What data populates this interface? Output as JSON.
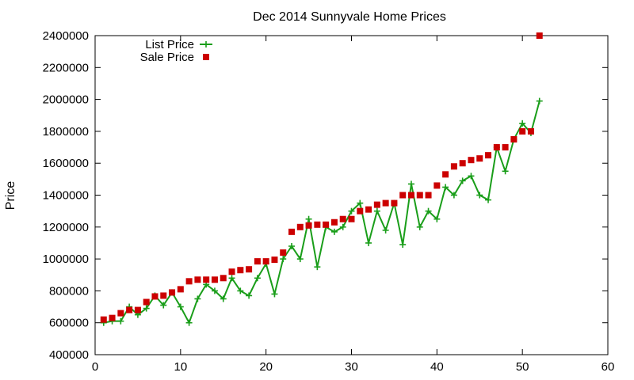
{
  "chart_data": {
    "type": "scatter",
    "title": "Dec 2014 Sunnyvale Home Prices",
    "xlabel": "",
    "ylabel": "Price",
    "xlim": [
      0,
      60
    ],
    "ylim": [
      400000,
      2400000
    ],
    "x_ticks": [
      "0",
      "10",
      "20",
      "30",
      "40",
      "50",
      "60"
    ],
    "y_ticks": [
      "400000",
      "600000",
      "800000",
      "1000000",
      "1200000",
      "1400000",
      "1600000",
      "1800000",
      "2000000",
      "2200000",
      "2400000"
    ],
    "grid": false,
    "legend_position": "top-left",
    "series": [
      {
        "name": "List Price",
        "style": "line-points",
        "color": "#1a9e1a",
        "x": [
          1,
          2,
          3,
          4,
          5,
          6,
          7,
          8,
          9,
          10,
          11,
          12,
          13,
          14,
          15,
          16,
          17,
          18,
          19,
          20,
          21,
          22,
          23,
          24,
          25,
          26,
          27,
          28,
          29,
          30,
          31,
          32,
          33,
          34,
          35,
          36,
          37,
          38,
          39,
          40,
          41,
          42,
          43,
          44,
          45,
          46,
          47,
          48,
          49,
          50,
          51,
          52
        ],
        "values": [
          600000,
          610000,
          610000,
          700000,
          650000,
          690000,
          770000,
          710000,
          790000,
          700000,
          600000,
          750000,
          840000,
          800000,
          750000,
          880000,
          800000,
          770000,
          880000,
          970000,
          780000,
          1000000,
          1080000,
          1000000,
          1250000,
          950000,
          1200000,
          1170000,
          1200000,
          1300000,
          1350000,
          1100000,
          1300000,
          1180000,
          1350000,
          1090000,
          1470000,
          1200000,
          1300000,
          1250000,
          1450000,
          1400000,
          1490000,
          1520000,
          1400000,
          1370000,
          1700000,
          1550000,
          1750000,
          1850000,
          1790000,
          1990000
        ]
      },
      {
        "name": "Sale Price",
        "style": "points",
        "color": "#cc0000",
        "x": [
          1,
          2,
          3,
          4,
          5,
          6,
          7,
          8,
          9,
          10,
          11,
          12,
          13,
          14,
          15,
          16,
          17,
          18,
          19,
          20,
          21,
          22,
          23,
          24,
          25,
          26,
          27,
          28,
          29,
          30,
          31,
          32,
          33,
          34,
          35,
          36,
          37,
          38,
          39,
          40,
          41,
          42,
          43,
          44,
          45,
          46,
          47,
          48,
          49,
          50,
          51,
          52
        ],
        "values": [
          620000,
          630000,
          660000,
          680000,
          680000,
          730000,
          765000,
          770000,
          790000,
          810000,
          860000,
          870000,
          870000,
          870000,
          880000,
          920000,
          930000,
          935000,
          985000,
          985000,
          995000,
          1040000,
          1170000,
          1200000,
          1210000,
          1215000,
          1215000,
          1230000,
          1250000,
          1250000,
          1300000,
          1310000,
          1340000,
          1350000,
          1350000,
          1400000,
          1400000,
          1400000,
          1400000,
          1460000,
          1530000,
          1580000,
          1600000,
          1620000,
          1630000,
          1650000,
          1700000,
          1700000,
          1750000,
          1800000,
          1800000,
          2400000
        ]
      }
    ]
  }
}
